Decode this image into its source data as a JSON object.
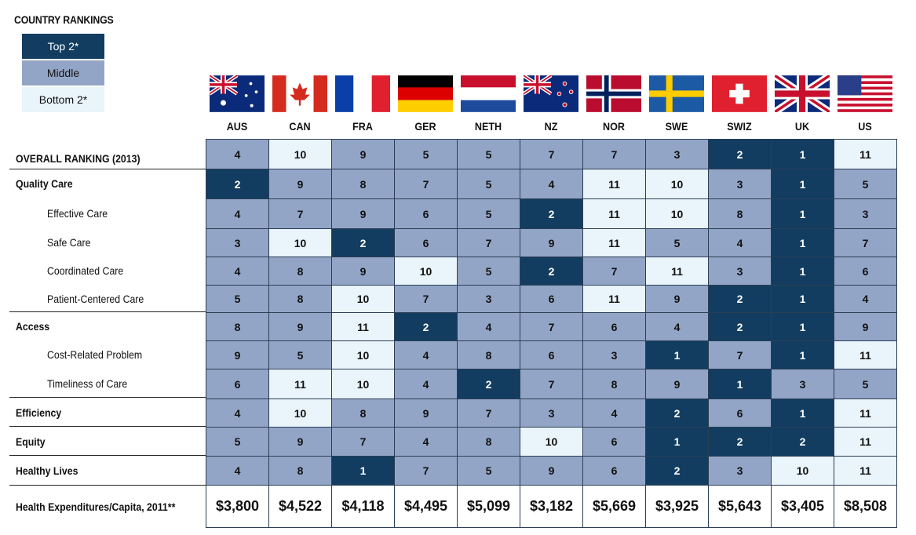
{
  "legend": {
    "title": "COUNTRY RANKINGS",
    "top": "Top 2*",
    "middle": "Middle",
    "bottom": "Bottom 2*"
  },
  "colors": {
    "top": "#123d61",
    "middle": "#93a5c6",
    "bottom": "#e9f4fb"
  },
  "countries": [
    "AUS",
    "CAN",
    "FRA",
    "GER",
    "NETH",
    "NZ",
    "NOR",
    "SWE",
    "SWIZ",
    "UK",
    "US"
  ],
  "flag_icons": [
    "australia-flag-icon",
    "canada-flag-icon",
    "france-flag-icon",
    "germany-flag-icon",
    "netherlands-flag-icon",
    "new-zealand-flag-icon",
    "norway-flag-icon",
    "sweden-flag-icon",
    "switzerland-flag-icon",
    "uk-flag-icon",
    "us-flag-icon"
  ],
  "chart_data": {
    "type": "table",
    "title": "COUNTRY RANKINGS",
    "columns": [
      "AUS",
      "CAN",
      "FRA",
      "GER",
      "NETH",
      "NZ",
      "NOR",
      "SWE",
      "SWIZ",
      "UK",
      "US"
    ],
    "rows": [
      {
        "label": "OVERALL RANKING (2013)",
        "level": "main",
        "values": [
          4,
          10,
          9,
          5,
          5,
          7,
          7,
          3,
          2,
          1,
          11
        ],
        "tiers": [
          "m",
          "b",
          "m",
          "m",
          "m",
          "m",
          "m",
          "m",
          "t",
          "t",
          "b"
        ]
      },
      {
        "label": "Quality Care",
        "level": "main",
        "values": [
          2,
          9,
          8,
          7,
          5,
          4,
          11,
          10,
          3,
          1,
          5
        ],
        "tiers": [
          "t",
          "m",
          "m",
          "m",
          "m",
          "m",
          "b",
          "b",
          "m",
          "t",
          "m"
        ]
      },
      {
        "label": "Effective Care",
        "level": "sub",
        "values": [
          4,
          7,
          9,
          6,
          5,
          2,
          11,
          10,
          8,
          1,
          3
        ],
        "tiers": [
          "m",
          "m",
          "m",
          "m",
          "m",
          "t",
          "b",
          "b",
          "m",
          "t",
          "m"
        ]
      },
      {
        "label": "Safe Care",
        "level": "sub",
        "values": [
          3,
          10,
          2,
          6,
          7,
          9,
          11,
          5,
          4,
          1,
          7
        ],
        "tiers": [
          "m",
          "b",
          "t",
          "m",
          "m",
          "m",
          "b",
          "m",
          "m",
          "t",
          "m"
        ]
      },
      {
        "label": "Coordinated Care",
        "level": "sub",
        "values": [
          4,
          8,
          9,
          10,
          5,
          2,
          7,
          11,
          3,
          1,
          6
        ],
        "tiers": [
          "m",
          "m",
          "m",
          "b",
          "m",
          "t",
          "m",
          "b",
          "m",
          "t",
          "m"
        ]
      },
      {
        "label": "Patient-Centered Care",
        "level": "sub",
        "values": [
          5,
          8,
          10,
          7,
          3,
          6,
          11,
          9,
          2,
          1,
          4
        ],
        "tiers": [
          "m",
          "m",
          "b",
          "m",
          "m",
          "m",
          "b",
          "m",
          "t",
          "t",
          "m"
        ]
      },
      {
        "label": "Access",
        "level": "main",
        "values": [
          8,
          9,
          11,
          2,
          4,
          7,
          6,
          4,
          2,
          1,
          9
        ],
        "tiers": [
          "m",
          "m",
          "b",
          "t",
          "m",
          "m",
          "m",
          "m",
          "t",
          "t",
          "m"
        ]
      },
      {
        "label": "Cost-Related Problem",
        "level": "sub",
        "values": [
          9,
          5,
          10,
          4,
          8,
          6,
          3,
          1,
          7,
          1,
          11
        ],
        "tiers": [
          "m",
          "m",
          "b",
          "m",
          "m",
          "m",
          "m",
          "t",
          "m",
          "t",
          "b"
        ]
      },
      {
        "label": "Timeliness of Care",
        "level": "sub",
        "values": [
          6,
          11,
          10,
          4,
          2,
          7,
          8,
          9,
          1,
          3,
          5
        ],
        "tiers": [
          "m",
          "b",
          "b",
          "m",
          "t",
          "m",
          "m",
          "m",
          "t",
          "m",
          "m"
        ]
      },
      {
        "label": "Efficiency",
        "level": "main",
        "values": [
          4,
          10,
          8,
          9,
          7,
          3,
          4,
          2,
          6,
          1,
          11
        ],
        "tiers": [
          "m",
          "b",
          "m",
          "m",
          "m",
          "m",
          "m",
          "t",
          "m",
          "t",
          "b"
        ]
      },
      {
        "label": "Equity",
        "level": "main",
        "values": [
          5,
          9,
          7,
          4,
          8,
          10,
          6,
          1,
          2,
          2,
          11
        ],
        "tiers": [
          "m",
          "m",
          "m",
          "m",
          "m",
          "b",
          "m",
          "t",
          "t",
          "t",
          "b"
        ]
      },
      {
        "label": "Healthy Lives",
        "level": "main",
        "values": [
          4,
          8,
          1,
          7,
          5,
          9,
          6,
          2,
          3,
          10,
          11
        ],
        "tiers": [
          "m",
          "m",
          "t",
          "m",
          "m",
          "m",
          "m",
          "t",
          "m",
          "b",
          "b"
        ]
      }
    ],
    "expenditures": {
      "label": "Health Expenditures/Capita, 2011**",
      "values": [
        "$3,800",
        "$4,522",
        "$4,118",
        "$4,495",
        "$5,099",
        "$3,182",
        "$5,669",
        "$3,925",
        "$5,643",
        "$3,405",
        "$8,508"
      ]
    }
  }
}
